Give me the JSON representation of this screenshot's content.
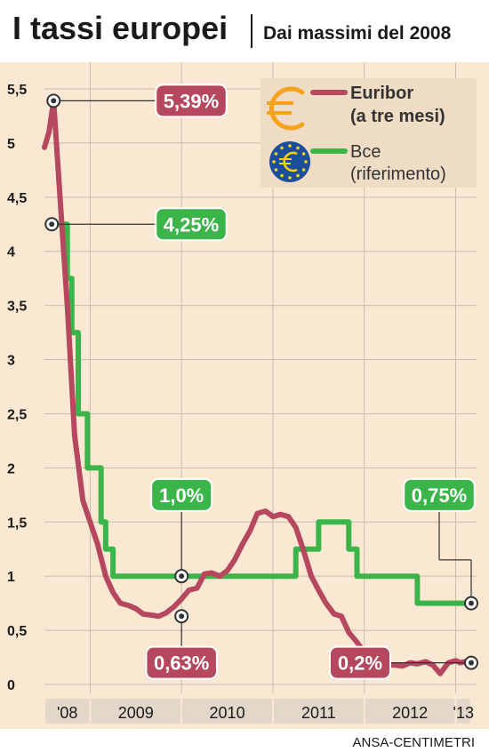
{
  "header": {
    "title": "I tassi europei",
    "subtitle": "Dai massimi del 2008"
  },
  "source": "ANSA-CENTIMETRI",
  "colors": {
    "background": "#fbe8d3",
    "euribor": "#b5475e",
    "bce": "#3bb54a",
    "legend_bg": "#efdcc5",
    "axis_band": "#e3d7c9",
    "euro_orange": "#f7a21b",
    "eu_blue": "#1b4f9c",
    "eu_star": "#ffd200"
  },
  "legend": [
    {
      "line1": "Euribor",
      "line2": "(a tre mesi)",
      "icon": "euro-sign-icon"
    },
    {
      "line1": "Bce",
      "line2": "(riferimento)",
      "icon": "eu-flag-euro-icon"
    }
  ],
  "chart_data": {
    "type": "line",
    "title": "I tassi europei",
    "subtitle": "Dai massimi del 2008",
    "ylim": [
      0,
      5.5
    ],
    "yticks": [
      "5,5",
      "5",
      "4,5",
      "4",
      "3,5",
      "3",
      "2,5",
      "2",
      "1,5",
      "1",
      "0,5",
      "0"
    ],
    "ytick_values": [
      5.5,
      5,
      4.5,
      4,
      3.5,
      3,
      2.5,
      2,
      1.5,
      1,
      0.5,
      0
    ],
    "xlim": [
      2008.5,
      2013.17
    ],
    "x_categories": [
      "'08",
      "2009",
      "2010",
      "2011",
      "2012",
      "'13"
    ],
    "x_category_bounds": [
      [
        2008.5,
        2009.0
      ],
      [
        2009.0,
        2010.0
      ],
      [
        2010.0,
        2011.0
      ],
      [
        2011.0,
        2012.0
      ],
      [
        2012.0,
        2013.0
      ],
      [
        2013.0,
        2013.17
      ]
    ],
    "grid": true,
    "legend_position": "top-right",
    "series": [
      {
        "name": "Euribor (a tre mesi)",
        "color": "#b5475e",
        "x": [
          2008.5,
          2008.55,
          2008.6,
          2008.67,
          2008.75,
          2008.83,
          2008.92,
          2009.0,
          2009.08,
          2009.17,
          2009.25,
          2009.33,
          2009.42,
          2009.5,
          2009.58,
          2009.67,
          2009.75,
          2009.83,
          2009.92,
          2010.0,
          2010.08,
          2010.17,
          2010.25,
          2010.33,
          2010.42,
          2010.5,
          2010.58,
          2010.67,
          2010.75,
          2010.83,
          2010.92,
          2011.0,
          2011.08,
          2011.17,
          2011.25,
          2011.33,
          2011.42,
          2011.5,
          2011.58,
          2011.67,
          2011.75,
          2011.83,
          2011.92,
          2012.0,
          2012.08,
          2012.17,
          2012.25,
          2012.33,
          2012.42,
          2012.5,
          2012.58,
          2012.67,
          2012.75,
          2012.83,
          2012.92,
          2013.0,
          2013.05,
          2013.1,
          2013.17
        ],
        "values": [
          4.96,
          5.1,
          5.39,
          4.5,
          3.5,
          2.3,
          1.7,
          1.5,
          1.3,
          1.0,
          0.85,
          0.75,
          0.73,
          0.7,
          0.65,
          0.64,
          0.63,
          0.66,
          0.72,
          0.79,
          0.87,
          0.89,
          1.02,
          1.03,
          1.0,
          1.05,
          1.15,
          1.3,
          1.42,
          1.58,
          1.6,
          1.55,
          1.57,
          1.55,
          1.45,
          1.25,
          1.0,
          0.87,
          0.75,
          0.65,
          0.63,
          0.48,
          0.39,
          0.3,
          0.21,
          0.2,
          0.18,
          0.18,
          0.17,
          0.2,
          0.19,
          0.21,
          0.18,
          0.1,
          0.2,
          0.22,
          0.2,
          0.21,
          0.22
        ]
      },
      {
        "name": "Bce (riferimento)",
        "color": "#3bb54a",
        "step": true,
        "x": [
          2008.58,
          2008.72,
          2008.75,
          2008.8,
          2008.87,
          2008.92,
          2008.97,
          2009.05,
          2009.12,
          2009.17,
          2009.25,
          2009.33,
          2010.0,
          2011.0,
          2011.25,
          2011.5,
          2011.83,
          2011.92,
          2012.0,
          2012.5,
          2012.58,
          2013.0,
          2013.17
        ],
        "values": [
          4.25,
          4.25,
          3.75,
          3.25,
          2.5,
          2.5,
          2.0,
          2.0,
          1.5,
          1.25,
          1.0,
          1.0,
          1.0,
          1.0,
          1.25,
          1.5,
          1.25,
          1.0,
          1.0,
          1.0,
          0.75,
          0.75,
          0.75
        ]
      }
    ],
    "annotations": [
      {
        "text": "5,39%",
        "x": 2008.6,
        "y": 5.39,
        "color": "#b5475e",
        "anchor": "upper-center"
      },
      {
        "text": "4,25%",
        "x": 2008.58,
        "y": 4.25,
        "color": "#3bb54a",
        "anchor": "upper-center"
      },
      {
        "text": "1,0%",
        "x": 2010.0,
        "y": 1.0,
        "color": "#3bb54a",
        "anchor": "middle-center"
      },
      {
        "text": "0,63%",
        "x": 2010.0,
        "y": 0.63,
        "color": "#b5475e",
        "anchor": "bottom-center"
      },
      {
        "text": "0,75%",
        "x": 2013.17,
        "y": 0.75,
        "color": "#3bb54a",
        "anchor": "middle-right"
      },
      {
        "text": "0,2%",
        "x": 2013.17,
        "y": 0.2,
        "color": "#b5475e",
        "anchor": "bottom-right"
      }
    ]
  }
}
